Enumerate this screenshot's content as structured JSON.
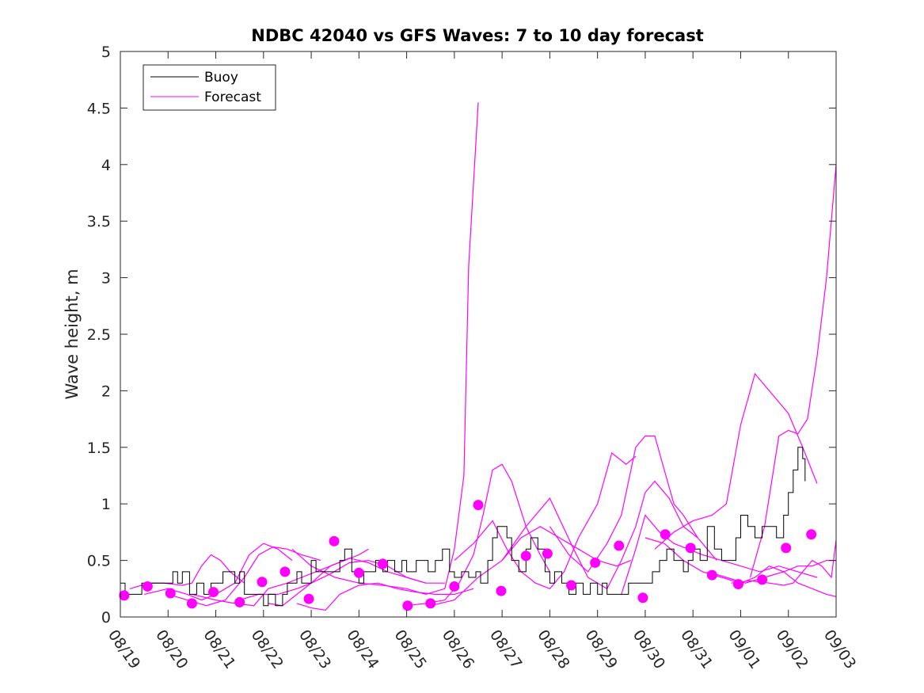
{
  "chart_data": {
    "type": "line",
    "title": "NDBC 42040 vs GFS Waves: 7 to 10 day forecast",
    "xlabel": "",
    "ylabel": "Wave height, m",
    "xlim": [
      0,
      15
    ],
    "ylim": [
      0,
      5
    ],
    "grid": false,
    "legend_position": "top-left",
    "x_tick_labels": [
      "08/19",
      "08/20",
      "08/21",
      "08/22",
      "08/23",
      "08/24",
      "08/25",
      "08/26",
      "08/27",
      "08/28",
      "08/29",
      "08/30",
      "08/31",
      "09/01",
      "09/02",
      "09/03"
    ],
    "y_ticks": [
      0,
      0.5,
      1,
      1.5,
      2,
      2.5,
      3,
      3.5,
      4,
      4.5,
      5
    ],
    "y_tick_labels": [
      "0",
      "0.5",
      "1",
      "1.5",
      "2",
      "2.5",
      "3",
      "3.5",
      "4",
      "4.5",
      "5"
    ],
    "colors": {
      "buoy": "#000000",
      "forecast": "#ff00ff"
    },
    "legend": [
      "Buoy",
      "Forecast"
    ],
    "buoy": {
      "name": "Buoy",
      "x": [
        0,
        0.1,
        0.2,
        0.35,
        0.45,
        0.6,
        0.8,
        1.0,
        1.1,
        1.2,
        1.3,
        1.45,
        1.6,
        1.75,
        1.9,
        2.0,
        2.15,
        2.3,
        2.4,
        2.5,
        2.6,
        2.7,
        2.85,
        3.0,
        3.1,
        3.25,
        3.4,
        3.5,
        3.6,
        3.7,
        3.8,
        3.9,
        4.0,
        4.1,
        4.2,
        4.35,
        4.5,
        4.6,
        4.7,
        4.85,
        5.0,
        5.1,
        5.2,
        5.35,
        5.5,
        5.6,
        5.75,
        5.9,
        6.0,
        6.1,
        6.2,
        6.3,
        6.45,
        6.6,
        6.75,
        6.9,
        7.0,
        7.15,
        7.3,
        7.45,
        7.55,
        7.7,
        7.8,
        7.9,
        8.0,
        8.1,
        8.2,
        8.35,
        8.5,
        8.6,
        8.75,
        8.9,
        9.0,
        9.1,
        9.25,
        9.4,
        9.55,
        9.7,
        9.85,
        10.0,
        10.1,
        10.2,
        10.35,
        10.5,
        10.65,
        10.8,
        11.0,
        11.15,
        11.3,
        11.45,
        11.6,
        11.8,
        11.9,
        12.0,
        12.15,
        12.3,
        12.45,
        12.6,
        12.75,
        12.9,
        13.0,
        13.15,
        13.3,
        13.45,
        13.6,
        13.75,
        13.9,
        14.0,
        14.1,
        14.2,
        14.3,
        14.35
      ],
      "y": [
        0.3,
        0.2,
        0.2,
        0.2,
        0.3,
        0.3,
        0.3,
        0.3,
        0.4,
        0.3,
        0.4,
        0.2,
        0.3,
        0.2,
        0.3,
        0.3,
        0.4,
        0.4,
        0.3,
        0.4,
        0.2,
        0.2,
        0.2,
        0.1,
        0.2,
        0.1,
        0.2,
        0.3,
        0.3,
        0.4,
        0.3,
        0.3,
        0.5,
        0.4,
        0.4,
        0.4,
        0.4,
        0.5,
        0.6,
        0.4,
        0.3,
        0.4,
        0.4,
        0.5,
        0.4,
        0.5,
        0.4,
        0.5,
        0.4,
        0.4,
        0.5,
        0.5,
        0.4,
        0.5,
        0.6,
        0.4,
        0.35,
        0.4,
        0.35,
        0.4,
        0.3,
        0.5,
        0.7,
        0.8,
        0.8,
        0.7,
        0.5,
        0.4,
        0.6,
        0.7,
        0.6,
        0.4,
        0.3,
        0.4,
        0.3,
        0.2,
        0.3,
        0.2,
        0.3,
        0.2,
        0.3,
        0.2,
        0.2,
        0.2,
        0.3,
        0.3,
        0.3,
        0.4,
        0.5,
        0.6,
        0.5,
        0.4,
        0.5,
        0.6,
        0.5,
        0.8,
        0.6,
        0.5,
        0.5,
        0.7,
        0.9,
        0.8,
        0.7,
        0.8,
        0.8,
        0.7,
        0.9,
        1.1,
        1.3,
        1.5,
        1.4,
        1.2
      ]
    },
    "forecast_series": [
      {
        "name": "Forecast",
        "x": [
          0.2,
          0.6,
          0.9,
          1.3,
          1.5,
          1.7,
          1.9,
          2.1,
          2.3,
          2.6
        ],
        "y": [
          0.25,
          0.3,
          0.3,
          0.28,
          0.3,
          0.45,
          0.55,
          0.5,
          0.4,
          0.3
        ]
      },
      {
        "name": "Forecast",
        "x": [
          0.5,
          1.0,
          1.4,
          1.7,
          2.0,
          2.4,
          2.7,
          3.0,
          3.3,
          3.6
        ],
        "y": [
          0.2,
          0.25,
          0.2,
          0.15,
          0.2,
          0.3,
          0.55,
          0.65,
          0.6,
          0.5
        ]
      },
      {
        "name": "Forecast",
        "x": [
          1.0,
          1.4,
          1.8,
          2.2,
          2.6,
          2.9,
          3.2,
          3.5,
          3.8,
          4.2
        ],
        "y": [
          0.2,
          0.15,
          0.1,
          0.15,
          0.35,
          0.55,
          0.62,
          0.6,
          0.55,
          0.5
        ]
      },
      {
        "name": "Forecast",
        "x": [
          1.5,
          2.0,
          2.4,
          2.8,
          3.1,
          3.5,
          3.8,
          4.1,
          4.4,
          4.7,
          5.0,
          5.2
        ],
        "y": [
          0.2,
          0.15,
          0.12,
          0.1,
          0.25,
          0.3,
          0.35,
          0.4,
          0.45,
          0.5,
          0.55,
          0.6
        ]
      },
      {
        "name": "Forecast",
        "x": [
          2.5,
          2.9,
          3.3,
          3.7,
          4.0,
          4.4,
          4.8,
          5.2,
          5.6,
          6.0,
          6.4
        ],
        "y": [
          0.15,
          0.2,
          0.2,
          0.25,
          0.3,
          0.38,
          0.48,
          0.5,
          0.45,
          0.35,
          0.3
        ]
      },
      {
        "name": "Forecast",
        "x": [
          3.1,
          3.4,
          3.7,
          4.0,
          4.4,
          4.8,
          5.2,
          5.6,
          6.0,
          6.4,
          6.8
        ],
        "y": [
          0.12,
          0.1,
          0.2,
          0.3,
          0.45,
          0.52,
          0.48,
          0.4,
          0.35,
          0.3,
          0.3
        ]
      },
      {
        "name": "Forecast",
        "x": [
          3.7,
          4.0,
          4.3,
          4.6,
          5.0,
          5.4,
          5.8,
          6.2,
          6.6,
          7.0,
          7.4
        ],
        "y": [
          0.12,
          0.08,
          0.06,
          0.2,
          0.28,
          0.3,
          0.25,
          0.22,
          0.2,
          0.2,
          0.25
        ]
      },
      {
        "name": "Forecast",
        "x": [
          3.6,
          4.0,
          4.5,
          5.0,
          5.5,
          6.0,
          6.4,
          6.8,
          7.0,
          7.2,
          7.3,
          7.5
        ],
        "y": [
          0.6,
          0.45,
          0.35,
          0.3,
          0.28,
          0.25,
          0.2,
          0.25,
          0.6,
          1.25,
          3.1,
          4.55
        ]
      },
      {
        "name": "Forecast",
        "x": [
          6.0,
          6.4,
          6.8,
          7.1,
          7.4,
          7.6,
          7.8,
          8.0,
          8.2,
          8.5,
          8.8,
          9.0
        ],
        "y": [
          0.1,
          0.12,
          0.15,
          0.3,
          0.55,
          0.9,
          1.3,
          1.35,
          1.2,
          0.8,
          0.55,
          0.4
        ]
      },
      {
        "name": "Forecast",
        "x": [
          6.5,
          7.0,
          7.5,
          8.0,
          8.4,
          8.8,
          9.2,
          9.6,
          10.0,
          10.4,
          10.7
        ],
        "y": [
          0.1,
          0.15,
          0.35,
          0.5,
          0.7,
          0.8,
          0.7,
          0.6,
          0.5,
          0.45,
          0.5
        ]
      },
      {
        "name": "Forecast",
        "x": [
          7.0,
          7.4,
          7.8,
          8.1,
          8.4,
          8.7,
          9.0,
          9.3,
          9.6,
          10.0,
          10.3,
          10.6,
          10.8
        ],
        "y": [
          0.5,
          0.65,
          0.85,
          0.6,
          0.4,
          0.3,
          0.25,
          0.4,
          0.7,
          1.0,
          1.45,
          1.35,
          1.42
        ]
      },
      {
        "name": "Forecast",
        "x": [
          8.0,
          8.5,
          9.0,
          9.5,
          9.8,
          10.2,
          10.5,
          10.8,
          11.0,
          11.2,
          11.5,
          11.8,
          12.1
        ],
        "y": [
          0.5,
          0.8,
          1.05,
          0.6,
          0.35,
          0.25,
          0.5,
          0.8,
          1.1,
          1.2,
          1.05,
          0.8,
          0.7
        ]
      },
      {
        "name": "Forecast",
        "x": [
          9.0,
          9.4,
          9.8,
          10.2,
          10.5,
          10.8,
          11.0,
          11.2,
          11.4,
          11.6,
          11.8,
          12.1,
          12.5
        ],
        "y": [
          0.8,
          0.55,
          0.4,
          0.65,
          0.9,
          1.5,
          1.6,
          1.6,
          1.3,
          1.0,
          0.9,
          0.7,
          0.5
        ]
      },
      {
        "name": "Forecast",
        "x": [
          10.5,
          10.8,
          11.0,
          11.3,
          11.6,
          11.9,
          12.2,
          12.6,
          13.0,
          13.4,
          13.8,
          14.2,
          14.6
        ],
        "y": [
          0.2,
          0.6,
          0.9,
          0.75,
          0.65,
          0.6,
          0.55,
          0.5,
          0.45,
          0.4,
          0.45,
          0.4,
          0.35
        ]
      },
      {
        "name": "Forecast",
        "x": [
          11.0,
          11.4,
          11.8,
          12.2,
          12.6,
          13.0,
          13.3,
          13.6,
          13.9,
          14.2,
          14.5,
          14.8,
          15.0
        ],
        "y": [
          0.7,
          0.65,
          0.5,
          0.4,
          0.35,
          0.3,
          0.35,
          0.45,
          0.4,
          0.3,
          0.25,
          0.2,
          0.18
        ]
      },
      {
        "name": "Forecast",
        "x": [
          11.2,
          11.6,
          12.0,
          12.4,
          12.7,
          13.0,
          13.3,
          13.6,
          14.0,
          14.3,
          14.6
        ],
        "y": [
          0.6,
          0.75,
          0.85,
          0.9,
          1.0,
          1.7,
          2.15,
          2.0,
          1.8,
          1.5,
          1.18
        ]
      },
      {
        "name": "Forecast",
        "x": [
          12.3,
          12.7,
          13.1,
          13.5,
          13.9,
          14.2,
          14.5,
          14.8,
          15.0
        ],
        "y": [
          0.4,
          0.35,
          0.3,
          0.35,
          0.4,
          0.45,
          0.45,
          0.5,
          0.5
        ]
      },
      {
        "name": "Forecast",
        "x": [
          12.8,
          13.2,
          13.6,
          13.9,
          14.1,
          14.3,
          14.5,
          14.7,
          14.9,
          15.0
        ],
        "y": [
          0.3,
          0.32,
          0.3,
          0.28,
          0.3,
          0.4,
          0.5,
          0.45,
          0.35,
          0.68
        ]
      },
      {
        "name": "Forecast",
        "x": [
          13.2,
          13.5,
          13.8,
          14.0,
          14.2,
          14.4,
          14.6,
          14.8,
          15.0
        ],
        "y": [
          0.35,
          0.8,
          1.6,
          1.65,
          1.62,
          1.75,
          2.3,
          3.0,
          4.0
        ]
      }
    ],
    "forecast_markers": {
      "x": [
        0.08,
        0.57,
        1.05,
        1.5,
        1.95,
        2.5,
        2.97,
        3.45,
        3.95,
        4.48,
        5.0,
        5.5,
        6.02,
        6.5,
        7.0,
        7.5,
        7.98,
        8.5,
        8.95,
        9.45,
        9.95,
        10.45,
        10.95,
        11.42,
        11.95,
        12.4,
        12.95,
        13.45,
        13.95,
        14.48
      ],
      "y": [
        0.19,
        0.27,
        0.21,
        0.12,
        0.22,
        0.13,
        0.31,
        0.4,
        0.16,
        0.67,
        0.39,
        0.47,
        0.1,
        0.12,
        0.27,
        0.99,
        0.23,
        0.54,
        0.56,
        0.28,
        0.48,
        0.63,
        0.17,
        0.73,
        0.61,
        0.37,
        0.29,
        0.33,
        0.61,
        0.73
      ]
    }
  }
}
